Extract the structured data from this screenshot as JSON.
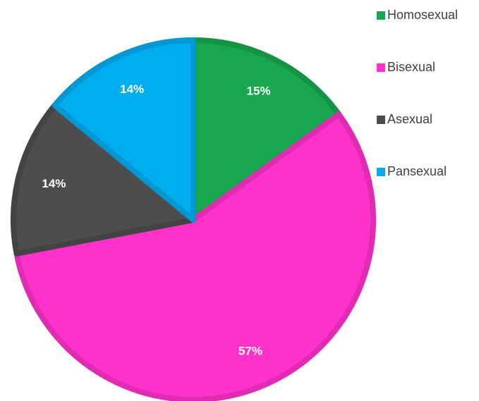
{
  "chart_data": {
    "type": "pie",
    "categories": [
      "Homosexual",
      "Bisexual",
      "Asexual",
      "Pansexual"
    ],
    "values": [
      15,
      57,
      14,
      14
    ],
    "value_labels": [
      "15%",
      "57%",
      "14%",
      "14%"
    ],
    "colors": [
      "#17a84f",
      "#ff33cc",
      "#4d4d4d",
      "#00aeef"
    ],
    "legend": "right"
  }
}
